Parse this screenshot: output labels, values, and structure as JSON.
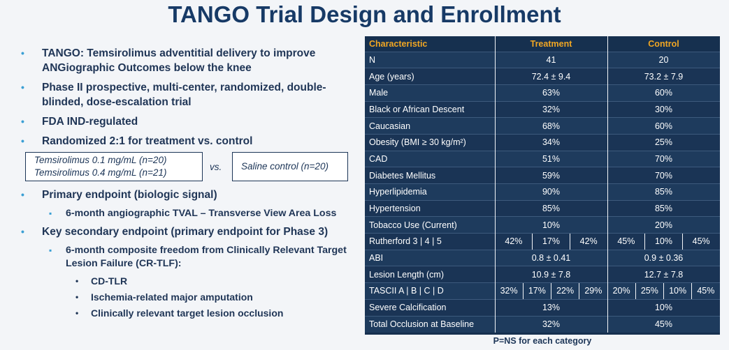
{
  "title": "TANGO Trial Design and Enrollment",
  "bullets": {
    "b1": "TANGO: Temsirolimus adventitial delivery to improve ANGiographic Outcomes below the knee",
    "b2": "Phase II prospective, multi-center, randomized, double-blinded, dose-escalation trial",
    "b3": "FDA IND-regulated",
    "b4": "Randomized 2:1 for treatment vs. control",
    "b5": "Primary endpoint (biologic signal)",
    "b5_sub": "6-month angiographic TVAL – Transverse View Area Loss",
    "b6": "Key secondary endpoint (primary endpoint for Phase 3)",
    "b6_sub": "6-month composite freedom from Clinically Relevant Target Lesion Failure (CR-TLF):",
    "b6_items": [
      "CD-TLR",
      "Ischemia-related major amputation",
      "Clinically relevant target lesion occlusion"
    ]
  },
  "arms": {
    "treat1": "Temsirolimus 0.1 mg/mL (n=20)",
    "treat2": "Temsirolimus 0.4 mg/mL (n=21)",
    "vs": "vs.",
    "control": "Saline control (n=20)"
  },
  "table": {
    "headers": [
      "Characteristic",
      "Treatment",
      "Control"
    ],
    "rows": [
      [
        "N",
        "41",
        "20"
      ],
      [
        "Age (years)",
        "72.4 ± 9.4",
        "73.2 ± 7.9"
      ],
      [
        "Male",
        "63%",
        "60%"
      ],
      [
        "Black or African Descent",
        "32%",
        "30%"
      ],
      [
        "Caucasian",
        "68%",
        "60%"
      ],
      [
        "Obesity (BMI ≥ 30 kg/m²)",
        "34%",
        "25%"
      ],
      [
        "CAD",
        "51%",
        "70%"
      ],
      [
        "Diabetes Mellitus",
        "59%",
        "70%"
      ],
      [
        "Hyperlipidemia",
        "90%",
        "85%"
      ],
      [
        "Hypertension",
        "85%",
        "85%"
      ],
      [
        "Tobacco Use (Current)",
        "10%",
        "20%"
      ],
      [
        "Rutherford 3 | 4 | 5",
        [
          "42%",
          "17%",
          "42%"
        ],
        [
          "45%",
          "10%",
          "45%"
        ]
      ],
      [
        "ABI",
        "0.8 ± 0.41",
        "0.9 ± 0.36"
      ],
      [
        "Lesion Length (cm)",
        "10.9 ± 7.8",
        "12.7 ± 7.8"
      ],
      [
        "TASCII A | B | C | D",
        [
          "32%",
          "17%",
          "22%",
          "29%"
        ],
        [
          "20%",
          "25%",
          "10%",
          "45%"
        ]
      ],
      [
        "Severe Calcification",
        "13%",
        "10%"
      ],
      [
        "Total Occlusion at Baseline",
        "32%",
        "45%"
      ]
    ],
    "footnote": "P=NS for each category"
  }
}
